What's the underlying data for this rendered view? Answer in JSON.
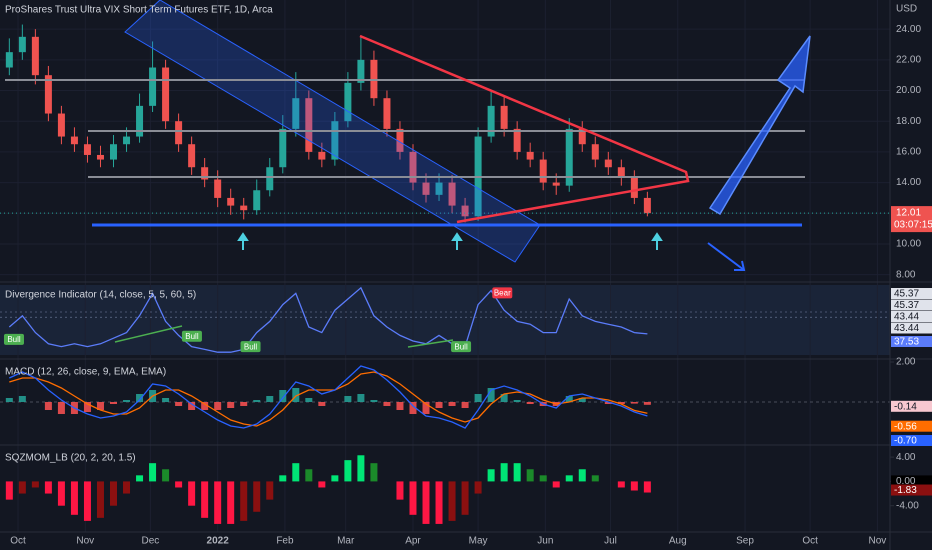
{
  "chart_data": [
    {
      "type": "candlestick",
      "title": "ProShares Trust Ultra VIX Short Term Futures ETF, 1D, Arca",
      "unit": "USD",
      "countdown": "03:07:15",
      "up_color": "#26a69a",
      "down_color": "#ef5350",
      "grid": true,
      "x": [
        -4,
        2,
        8,
        14,
        20,
        26,
        32,
        38,
        44,
        50,
        56,
        62,
        68,
        74,
        80,
        86,
        92,
        98,
        104,
        110,
        116,
        122,
        128,
        134,
        140,
        146,
        152,
        158,
        164,
        170,
        176,
        182,
        188,
        194,
        200,
        206,
        212,
        218,
        224,
        230,
        236,
        242,
        248,
        254,
        260,
        266,
        272,
        278,
        284,
        290
      ],
      "open": [
        21.5,
        22.5,
        23.5,
        21,
        18.5,
        17,
        16.5,
        15.8,
        15.5,
        16.5,
        17,
        19,
        21.5,
        18,
        16.5,
        15,
        14.2,
        13,
        12.5,
        12.2,
        13.5,
        15,
        17.5,
        19.5,
        16,
        15.5,
        18,
        20.5,
        22,
        19.5,
        17.5,
        16,
        14,
        13.2,
        14,
        12.5,
        11.8,
        17,
        19,
        17.5,
        16,
        15.5,
        14,
        13.8,
        17.5,
        16.5,
        15.5,
        15,
        14.3,
        13
      ],
      "high": [
        23.4,
        24.3,
        24.0,
        21.6,
        19.0,
        17.6,
        17.0,
        16.4,
        17.1,
        17.6,
        19.8,
        23.2,
        22.0,
        18.5,
        17.0,
        15.6,
        14.8,
        13.6,
        13.0,
        14.2,
        15.6,
        18.4,
        21.2,
        20.0,
        16.6,
        18.6,
        21.2,
        23.6,
        22.6,
        20.0,
        18.0,
        16.5,
        14.6,
        14.6,
        14.5,
        13.0,
        17.6,
        19.9,
        19.6,
        18.0,
        16.6,
        16.0,
        14.6,
        18.2,
        18.0,
        17.0,
        16.0,
        15.5,
        14.8,
        13.4
      ],
      "low": [
        21.0,
        22.0,
        20.4,
        18.0,
        16.5,
        16.0,
        15.3,
        15.0,
        15.0,
        16.0,
        16.6,
        18.6,
        17.5,
        16.0,
        14.5,
        13.7,
        12.4,
        11.9,
        11.6,
        11.9,
        13.1,
        14.6,
        17.0,
        15.5,
        15.0,
        15.1,
        17.6,
        20.0,
        19.0,
        17.0,
        15.5,
        13.5,
        12.7,
        12.8,
        12.0,
        11.4,
        11.5,
        16.6,
        17.0,
        15.5,
        15.0,
        13.5,
        13.2,
        13.4,
        16.0,
        15.0,
        14.5,
        13.8,
        12.6,
        11.8
      ],
      "close": [
        22.5,
        23.5,
        21,
        18.5,
        17,
        16.5,
        15.8,
        15.5,
        16.5,
        17,
        19,
        21.5,
        18,
        16.5,
        15,
        14.2,
        13,
        12.5,
        12.2,
        13.5,
        15,
        17.5,
        19.5,
        16,
        15.5,
        18,
        20.5,
        22,
        19.5,
        17.5,
        16,
        14,
        13.2,
        14,
        12.5,
        11.8,
        17,
        19,
        17.5,
        16,
        15.5,
        14,
        13.8,
        17.5,
        16.5,
        15.5,
        15,
        14.3,
        13,
        12.01
      ],
      "xlim": [
        -8.3,
        401.8
      ],
      "xticks": [
        {
          "value": 0,
          "label": "Oct"
        },
        {
          "value": 31,
          "label": "Nov"
        },
        {
          "value": 61,
          "label": "Dec"
        },
        {
          "value": 92,
          "label": "2022"
        },
        {
          "value": 123,
          "label": "Feb"
        },
        {
          "value": 151,
          "label": "Mar"
        },
        {
          "value": 182,
          "label": "Apr"
        },
        {
          "value": 212,
          "label": "May"
        },
        {
          "value": 243,
          "label": "Jun"
        },
        {
          "value": 273,
          "label": "Jul"
        },
        {
          "value": 304,
          "label": "Aug"
        },
        {
          "value": 335,
          "label": "Sep"
        },
        {
          "value": 365,
          "label": "Oct"
        },
        {
          "value": 396,
          "label": "Nov"
        }
      ],
      "ylim": [
        7.65,
        25.9
      ],
      "yticks": [
        {
          "value": 8,
          "label": "8.00"
        },
        {
          "value": 10,
          "label": "10.00"
        },
        {
          "value": 12,
          "label": "12.00"
        },
        {
          "value": 14,
          "label": "14.00"
        },
        {
          "value": 16,
          "label": "16.00"
        },
        {
          "value": 18,
          "label": "18.00"
        },
        {
          "value": 20,
          "label": "20.00"
        },
        {
          "value": 22,
          "label": "22.00"
        },
        {
          "value": 24,
          "label": "24.00"
        }
      ]
    },
    {
      "type": "line",
      "title": "Divergence Indicator (14, close, 5, 5, 60, 5)",
      "ylim": [
        30,
        55
      ],
      "scale_labels": [
        45.37,
        45.37,
        43.44,
        43.44
      ],
      "series": [
        {
          "color": "#5b7cfa",
          "values": [
            40,
            44,
            38,
            34,
            33,
            34,
            33,
            34,
            36,
            38,
            44,
            52,
            42,
            37,
            33,
            32,
            31,
            31,
            32,
            38,
            42,
            48,
            52,
            40,
            38,
            46,
            50,
            54,
            44,
            40,
            37,
            35,
            34,
            37,
            34,
            33,
            48,
            53,
            46,
            42,
            41,
            38,
            38,
            50,
            44,
            42,
            41,
            40,
            38,
            37.53
          ]
        }
      ],
      "annotations": [
        {
          "text": "Bull",
          "x": -6,
          "y": 35.4
        },
        {
          "text": "Bull",
          "x": 76,
          "y": 36.5
        },
        {
          "text": "Bull",
          "x": 103,
          "y": 32.8
        },
        {
          "text": "Bull",
          "x": 200,
          "y": 32.8
        },
        {
          "text": "Bear",
          "x": 219,
          "y": 52
        }
      ]
    },
    {
      "type": "line",
      "title": "MACD (12, 26, close, 9, EMA, EMA)",
      "ylim": [
        -2,
        2
      ],
      "yticks": [
        {
          "value": 2,
          "label": "2.00"
        }
      ],
      "series": [
        {
          "type": "bar",
          "colors": [
            "#26a69a",
            "#ff5252"
          ],
          "values": [
            0.2,
            0.3,
            0,
            -0.4,
            -0.6,
            -0.6,
            -0.5,
            -0.4,
            -0.1,
            0.1,
            0.4,
            0.6,
            0.2,
            -0.2,
            -0.4,
            -0.4,
            -0.4,
            -0.3,
            -0.2,
            0.1,
            0.3,
            0.6,
            0.7,
            0.2,
            -0.2,
            0,
            0.3,
            0.4,
            0.1,
            -0.2,
            -0.4,
            -0.6,
            -0.6,
            -0.3,
            -0.2,
            -0.3,
            0.4,
            0.7,
            0.4,
            0.1,
            -0.1,
            -0.2,
            -0.2,
            0.3,
            0.2,
            0,
            -0.1,
            -0.1,
            -0.08,
            -0.14
          ]
        },
        {
          "type": "line",
          "color": "#ff6d00",
          "values": [
            1.0,
            1.2,
            1.2,
            1.0,
            0.7,
            0.3,
            -0.1,
            -0.4,
            -0.6,
            -0.6,
            -0.3,
            0.3,
            0.6,
            0.6,
            0.3,
            -0.1,
            -0.5,
            -0.9,
            -1.1,
            -1.2,
            -0.9,
            -0.4,
            0.3,
            0.6,
            0.6,
            0.6,
            0.9,
            1.4,
            1.5,
            1.3,
            0.9,
            0.4,
            -0.1,
            -0.5,
            -0.8,
            -1.0,
            -0.8,
            -0.1,
            0.4,
            0.5,
            0.4,
            0.1,
            -0.1,
            0.0,
            0.2,
            0.2,
            0.1,
            -0.1,
            -0.42,
            -0.56
          ]
        },
        {
          "type": "line",
          "color": "#2962ff",
          "values": [
            1.2,
            1.5,
            1.2,
            0.6,
            0.1,
            -0.3,
            -0.6,
            -0.8,
            -0.7,
            -0.5,
            0.1,
            0.9,
            0.8,
            0.4,
            -0.1,
            -0.5,
            -0.9,
            -1.2,
            -1.3,
            -1.1,
            -0.6,
            0.2,
            1.0,
            0.8,
            0.4,
            0.6,
            1.2,
            1.8,
            1.6,
            1.1,
            0.5,
            -0.2,
            -0.7,
            -0.8,
            -1.0,
            -1.3,
            -0.4,
            0.6,
            0.8,
            0.6,
            0.3,
            -0.1,
            -0.3,
            0.3,
            0.4,
            0.2,
            0.0,
            -0.2,
            -0.5,
            -0.7
          ],
          "value_labels": [
            null,
            null,
            null,
            null,
            null,
            null,
            null,
            null,
            null,
            null,
            null,
            null,
            null,
            null,
            null,
            null,
            null,
            null,
            null,
            null,
            null,
            null,
            null,
            null,
            null,
            null,
            null,
            null,
            null,
            null,
            null,
            null,
            null,
            null,
            null,
            null,
            null,
            null,
            null,
            null,
            null,
            null,
            null,
            null,
            null,
            null,
            null,
            null,
            null,
            "-0.70"
          ]
        }
      ]
    },
    {
      "type": "bar",
      "title": "SQZMOM_LB (20, 2, 20, 1.5)",
      "ylim": [
        -8,
        5.5
      ],
      "yticks": [
        {
          "value": 4,
          "label": "4.00"
        },
        {
          "value": 0,
          "label": "0.00"
        },
        {
          "value": -4,
          "label": "-4.00"
        }
      ],
      "colors": [
        "#00e676",
        "#1b8a2a",
        "#ff1744",
        "#8b1010"
      ],
      "values": [
        -3,
        -2,
        -1,
        -2,
        -4,
        -5.5,
        -6.5,
        -6,
        -4,
        -2,
        1,
        3,
        2,
        -1,
        -4,
        -6,
        -7,
        -7,
        -6.5,
        -5,
        -3,
        1,
        3,
        2,
        -1,
        1,
        3.5,
        4.3,
        3,
        0,
        -3,
        -5.5,
        -7,
        -7,
        -6.5,
        -5.5,
        -2,
        2,
        3,
        3,
        2,
        1,
        -1,
        1,
        2,
        1,
        0,
        -1,
        -1.5,
        -1.83
      ]
    }
  ]
}
